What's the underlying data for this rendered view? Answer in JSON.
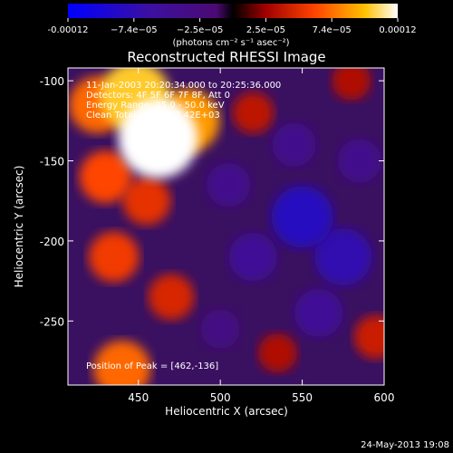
{
  "chart_data": {
    "type": "heatmap",
    "title": "Reconstructed RHESSI Image",
    "xlabel": "Heliocentric X (arcsec)",
    "ylabel": "Heliocentric Y (arcsec)",
    "xlim": [
      407,
      600
    ],
    "ylim": [
      -290,
      -92
    ],
    "x_ticks": [
      450,
      500,
      550,
      600
    ],
    "y_ticks": [
      -100,
      -150,
      -200,
      -250
    ],
    "colorbar": {
      "ticks": [
        "-0.00012",
        "−7.4e−05",
        "−2.5e−05",
        "2.5e−05",
        "7.4e−05",
        "0.00012"
      ],
      "unit_label": "(photons cm⁻² s⁻¹ asec⁻²)",
      "range": [
        -0.00012,
        0.00012
      ]
    },
    "annotations": {
      "time": "11-Jan-2003 20:20:34.000 to 20:25:36.000",
      "detectors": "Detectors: 4F 5F 6F 7F 8F, Att 0",
      "energy": "Energy Range: 25.0 - 50.0 keV",
      "method": "Clean     Total counts: 3.42E+03",
      "peak": "Position of Peak = [462,-136]"
    },
    "sources": [
      {
        "x": 462,
        "y": -136,
        "value": 0.00012
      },
      {
        "x": 448,
        "y": -110,
        "value": 0.0001
      },
      {
        "x": 480,
        "y": -125,
        "value": 8.5e-05
      },
      {
        "x": 425,
        "y": -115,
        "value": 7e-05
      },
      {
        "x": 430,
        "y": -160,
        "value": 6e-05
      },
      {
        "x": 455,
        "y": -175,
        "value": 5e-05
      },
      {
        "x": 435,
        "y": -210,
        "value": 5.5e-05
      },
      {
        "x": 470,
        "y": -235,
        "value": 4.5e-05
      },
      {
        "x": 440,
        "y": -280,
        "value": 7e-05
      },
      {
        "x": 520,
        "y": -120,
        "value": 3.5e-05
      },
      {
        "x": 580,
        "y": -100,
        "value": 3e-05
      },
      {
        "x": 595,
        "y": -260,
        "value": 4e-05
      },
      {
        "x": 535,
        "y": -270,
        "value": 3e-05
      },
      {
        "x": 550,
        "y": -185,
        "value": -8e-05
      },
      {
        "x": 575,
        "y": -210,
        "value": -7e-05
      },
      {
        "x": 520,
        "y": -210,
        "value": -5e-05
      },
      {
        "x": 560,
        "y": -245,
        "value": -5e-05
      },
      {
        "x": 585,
        "y": -150,
        "value": -4e-05
      },
      {
        "x": 505,
        "y": -165,
        "value": -4e-05
      },
      {
        "x": 545,
        "y": -140,
        "value": -4e-05
      },
      {
        "x": 500,
        "y": -255,
        "value": -3e-05
      }
    ]
  },
  "footer": {
    "timestamp": "24-May-2013 19:08"
  }
}
